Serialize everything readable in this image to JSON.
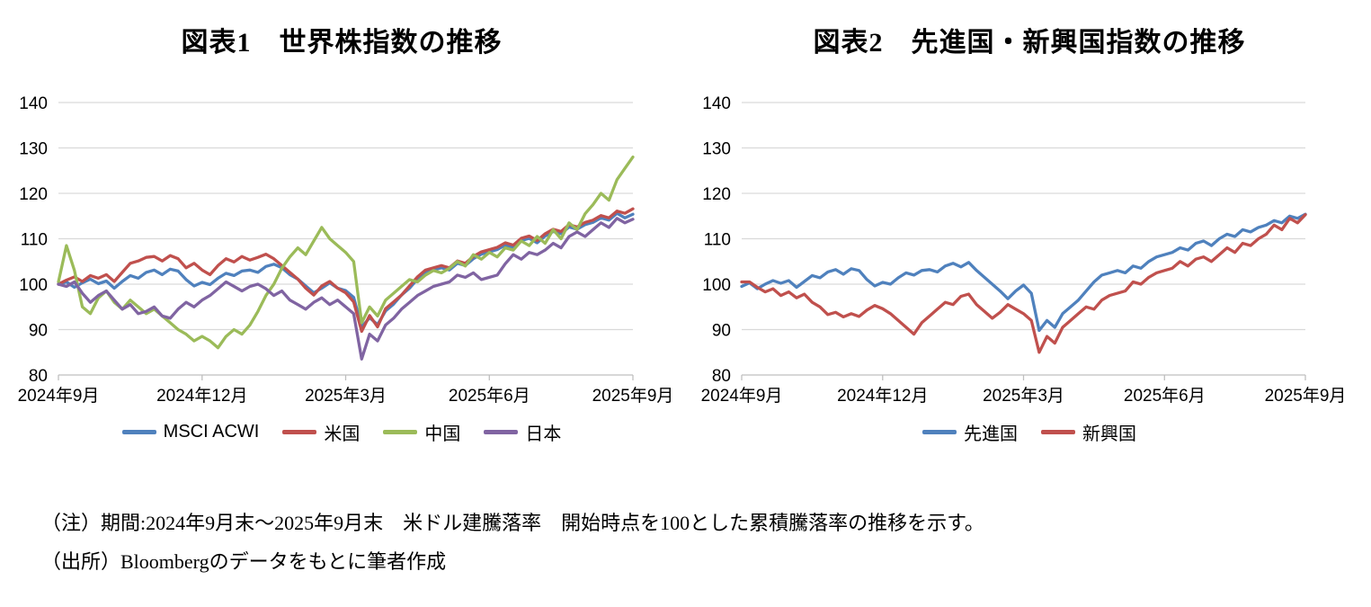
{
  "page": {
    "background": "#ffffff"
  },
  "colors": {
    "gridline": "#D9D9D9",
    "axis": "#BFBFBF",
    "text": "#000000"
  },
  "chart_data": [
    {
      "type": "line",
      "title": "図表1　世界株指数の推移",
      "x_tick_labels": [
        "2024年9月",
        "2024年12月",
        "2025年3月",
        "2025年6月",
        "2025年9月"
      ],
      "y_ticks": [
        140,
        130,
        120,
        110,
        100,
        90,
        80
      ],
      "ylim": [
        80,
        140
      ],
      "grid": "horizontal",
      "legend_position": "bottom",
      "series": [
        {
          "name": "MSCI ACWI",
          "color": "#4F81BD",
          "values": [
            100,
            100.5,
            99.3,
            100.3,
            101.1,
            100.1,
            100.7,
            99.1,
            100.6,
            101.9,
            101.3,
            102.6,
            103.1,
            102.1,
            103.3,
            102.9,
            101.0,
            99.6,
            100.4,
            99.9,
            101.3,
            102.4,
            101.9,
            102.9,
            103.1,
            102.6,
            103.9,
            104.4,
            103.6,
            102.1,
            101.1,
            99.6,
            98.1,
            99.1,
            100.3,
            99.1,
            98.6,
            97.1,
            90.6,
            92.6,
            91.1,
            94.1,
            95.6,
            97.6,
            99.1,
            101.1,
            102.6,
            103.1,
            103.6,
            103.1,
            104.6,
            104.1,
            105.6,
            106.6,
            107.1,
            107.6,
            108.6,
            108.1,
            109.6,
            110.1,
            109.1,
            110.6,
            111.6,
            111.1,
            112.6,
            112.1,
            113.1,
            113.6,
            114.6,
            114.1,
            115.6,
            114.6,
            115.4
          ]
        },
        {
          "name": "米国",
          "color": "#C0504D",
          "values": [
            100,
            100.9,
            101.6,
            100.6,
            101.9,
            101.3,
            102.1,
            100.6,
            102.6,
            104.6,
            105.1,
            105.9,
            106.1,
            105.1,
            106.3,
            105.6,
            103.6,
            104.6,
            103.1,
            102.1,
            104.1,
            105.6,
            104.9,
            106.1,
            105.3,
            105.9,
            106.6,
            105.6,
            104.1,
            102.6,
            101.1,
            99.1,
            97.6,
            99.6,
            100.6,
            99.1,
            98.1,
            96.1,
            89.6,
            93.1,
            90.6,
            94.6,
            96.1,
            97.6,
            99.6,
            101.6,
            103.1,
            103.6,
            104.1,
            103.6,
            105.1,
            104.6,
            106.1,
            107.1,
            107.6,
            108.1,
            109.1,
            108.6,
            110.1,
            110.6,
            109.6,
            111.1,
            112.1,
            111.6,
            113.1,
            112.6,
            113.6,
            114.1,
            115.1,
            114.6,
            116.1,
            115.6,
            116.6
          ]
        },
        {
          "name": "中国",
          "color": "#9BBB59",
          "values": [
            100.5,
            108.5,
            103,
            95,
            93.5,
            97,
            98.5,
            96,
            94.5,
            96.5,
            95,
            93.5,
            94.5,
            93,
            91.5,
            90,
            89,
            87.5,
            88.5,
            87.5,
            86,
            88.5,
            90,
            89,
            91,
            94,
            97.5,
            100,
            103.5,
            106,
            108,
            106.5,
            109.5,
            112.5,
            110,
            108.5,
            107,
            105,
            91.5,
            95,
            93,
            96.5,
            98,
            99.5,
            101,
            100.5,
            102,
            103,
            102.5,
            103.5,
            105,
            104,
            106.5,
            105.5,
            107,
            106,
            108,
            107.5,
            109.5,
            108.5,
            110.5,
            109,
            112,
            110,
            113.5,
            112,
            115.5,
            117.5,
            120,
            118.5,
            123,
            125.5,
            128
          ]
        },
        {
          "name": "日本",
          "color": "#8064A2",
          "values": [
            100,
            99.5,
            100.5,
            98,
            96,
            97.5,
            98.5,
            96.5,
            94.5,
            95.5,
            93.5,
            94,
            95,
            93,
            92.5,
            94.5,
            96,
            95,
            96.5,
            97.5,
            99,
            100.5,
            99.5,
            98.5,
            99.5,
            100,
            99,
            97.5,
            98.5,
            96.5,
            95.5,
            94.5,
            96,
            97,
            95.5,
            96.5,
            95,
            93.5,
            83.5,
            89,
            87.5,
            91,
            92.5,
            94.5,
            96,
            97.5,
            98.5,
            99.5,
            100,
            100.5,
            102,
            101.5,
            102.5,
            101,
            101.5,
            102,
            104.5,
            106.5,
            105.5,
            107,
            106.5,
            107.5,
            109,
            108,
            110.5,
            111.5,
            110.5,
            112,
            113.5,
            112.5,
            114.5,
            113.5,
            114.3
          ]
        }
      ]
    },
    {
      "type": "line",
      "title": "図表2　先進国・新興国指数の推移",
      "x_tick_labels": [
        "2024年9月",
        "2024年12月",
        "2025年3月",
        "2025年6月",
        "2025年9月"
      ],
      "y_ticks": [
        140,
        130,
        120,
        110,
        100,
        90,
        80
      ],
      "ylim": [
        80,
        140
      ],
      "grid": "horizontal",
      "legend_position": "bottom",
      "series": [
        {
          "name": "先進国",
          "color": "#4F81BD",
          "values": [
            99.5,
            100.3,
            99.0,
            100.0,
            100.8,
            100.2,
            100.8,
            99.3,
            100.6,
            101.9,
            101.4,
            102.7,
            103.2,
            102.2,
            103.4,
            103.0,
            101.0,
            99.6,
            100.4,
            100.0,
            101.4,
            102.5,
            102.0,
            103.0,
            103.2,
            102.7,
            104.0,
            104.6,
            103.8,
            104.8,
            103.0,
            101.5,
            100.0,
            98.5,
            96.8,
            98.5,
            99.8,
            98.0,
            89.8,
            92.0,
            90.5,
            93.5,
            95.0,
            96.5,
            98.5,
            100.5,
            102.0,
            102.5,
            103.0,
            102.5,
            104.0,
            103.5,
            105.0,
            106.0,
            106.5,
            107.0,
            108.0,
            107.5,
            109.0,
            109.5,
            108.5,
            110.0,
            111.0,
            110.5,
            112.0,
            111.5,
            112.5,
            113.0,
            114.0,
            113.5,
            115.0,
            114.5,
            115.4
          ]
        },
        {
          "name": "新興国",
          "color": "#C0504D",
          "values": [
            100.5,
            100.5,
            99.3,
            98.3,
            99.0,
            97.5,
            98.3,
            97.0,
            97.8,
            96.0,
            95.0,
            93.3,
            93.8,
            92.8,
            93.5,
            92.9,
            94.3,
            95.3,
            94.6,
            93.5,
            92.0,
            90.5,
            89.0,
            91.5,
            93.0,
            94.5,
            96.0,
            95.5,
            97.3,
            97.8,
            95.5,
            94.0,
            92.5,
            93.8,
            95.5,
            94.5,
            93.5,
            92.0,
            85.0,
            88.5,
            87.0,
            90.5,
            92.0,
            93.5,
            95.0,
            94.5,
            96.5,
            97.5,
            98.0,
            98.5,
            100.5,
            100.0,
            101.5,
            102.5,
            103.0,
            103.5,
            105.0,
            104.0,
            105.5,
            106.0,
            105.0,
            106.5,
            108.0,
            107.0,
            109.0,
            108.5,
            110.0,
            111.0,
            113.0,
            112.0,
            114.5,
            113.5,
            115.3
          ]
        }
      ]
    }
  ],
  "notes": {
    "note1": "（注）期間:2024年9月末～2025年9月末　米ドル建騰落率　開始時点を100とした累積騰落率の推移を示す。",
    "note2": "（出所）Bloombergのデータをもとに筆者作成"
  }
}
